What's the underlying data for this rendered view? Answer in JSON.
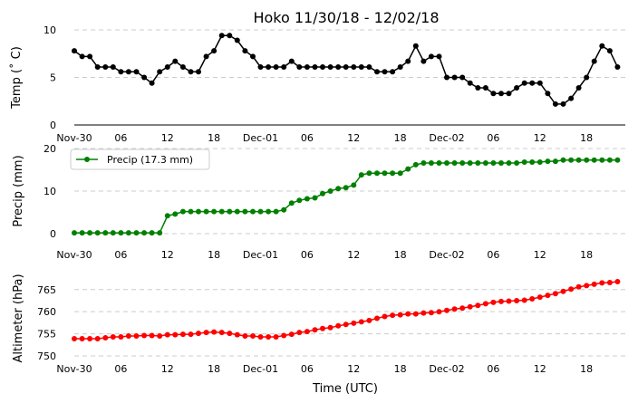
{
  "chart_data": [
    {
      "type": "line",
      "title": "Hoko 11/30/18 - 12/02/18",
      "ylabel": "Temp ($^\\circ$C)",
      "ylabel_display": "Temp (˚ C)",
      "xlabel": "",
      "x_unit": "hours since Nov-30 00:00",
      "x_ticks": [
        0,
        6,
        12,
        18,
        24,
        30,
        36,
        42,
        48,
        54,
        60,
        66
      ],
      "x_tick_labels": [
        "Nov-30",
        "06",
        "12",
        "18",
        "Dec-01",
        "06",
        "12",
        "18",
        "Dec-02",
        "06",
        "12",
        "18"
      ],
      "xlim": [
        0,
        71
      ],
      "ylim": [
        0,
        10
      ],
      "y_ticks": [
        0,
        5,
        10
      ],
      "grid": true,
      "legend": null,
      "color": "#000000",
      "series": [
        {
          "name": "Temp",
          "x": [
            0,
            1,
            2,
            3,
            4,
            5,
            6,
            7,
            8,
            9,
            10,
            11,
            12,
            13,
            14,
            15,
            16,
            17,
            18,
            19,
            20,
            21,
            22,
            23,
            24,
            25,
            26,
            27,
            28,
            29,
            30,
            31,
            32,
            33,
            34,
            35,
            36,
            37,
            38,
            39,
            40,
            41,
            42,
            43,
            44,
            45,
            46,
            47,
            48,
            49,
            50,
            51,
            52,
            53,
            54,
            55,
            56,
            57,
            58,
            59,
            60,
            61,
            62,
            63,
            64,
            65,
            66,
            67,
            68,
            69,
            70
          ],
          "values": [
            7.8,
            7.2,
            7.2,
            6.1,
            6.1,
            6.1,
            5.6,
            5.6,
            5.6,
            5.0,
            4.4,
            5.6,
            6.1,
            6.7,
            6.1,
            5.6,
            5.6,
            7.2,
            7.8,
            9.4,
            9.4,
            8.9,
            7.8,
            7.2,
            6.1,
            6.1,
            6.1,
            6.1,
            6.7,
            6.1,
            6.1,
            6.1,
            6.1,
            6.1,
            6.1,
            6.1,
            6.1,
            6.1,
            6.1,
            5.6,
            5.6,
            5.6,
            6.1,
            6.7,
            8.3,
            6.7,
            7.2,
            7.2,
            5.0,
            5.0,
            5.0,
            4.4,
            3.9,
            3.9,
            3.3,
            3.3,
            3.3,
            3.9,
            4.4,
            4.4,
            4.4,
            3.3,
            2.2,
            2.2,
            2.8,
            3.9,
            5.0,
            6.7,
            8.3,
            7.8,
            6.1
          ]
        }
      ]
    },
    {
      "type": "line",
      "title": "",
      "ylabel": "Precip (mm)",
      "xlabel": "",
      "x_tick_labels": [
        "Nov-30",
        "06",
        "12",
        "18",
        "Dec-01",
        "06",
        "12",
        "18",
        "Dec-02",
        "06",
        "12",
        "18"
      ],
      "xlim": [
        0,
        71
      ],
      "ylim": [
        0,
        20
      ],
      "y_ticks": [
        0,
        10,
        20
      ],
      "grid": true,
      "legend": "top-left",
      "color": "#008000",
      "series": [
        {
          "name": "Precip (17.3 mm)",
          "x": [
            0,
            1,
            2,
            3,
            4,
            5,
            6,
            7,
            8,
            9,
            10,
            11,
            12,
            13,
            14,
            15,
            16,
            17,
            18,
            19,
            20,
            21,
            22,
            23,
            24,
            25,
            26,
            27,
            28,
            29,
            30,
            31,
            32,
            33,
            34,
            35,
            36,
            37,
            38,
            39,
            40,
            41,
            42,
            43,
            44,
            45,
            46,
            47,
            48,
            49,
            50,
            51,
            52,
            53,
            54,
            55,
            56,
            57,
            58,
            59,
            60,
            61,
            62,
            63,
            64,
            65,
            66,
            67,
            68,
            69,
            70
          ],
          "values": [
            0.2,
            0.2,
            0.2,
            0.2,
            0.2,
            0.2,
            0.2,
            0.2,
            0.2,
            0.2,
            0.2,
            0.2,
            4.2,
            4.6,
            5.2,
            5.2,
            5.2,
            5.2,
            5.2,
            5.2,
            5.2,
            5.2,
            5.2,
            5.2,
            5.2,
            5.2,
            5.2,
            5.6,
            7.2,
            7.8,
            8.2,
            8.4,
            9.4,
            10.0,
            10.6,
            10.8,
            11.4,
            13.8,
            14.2,
            14.2,
            14.2,
            14.2,
            14.2,
            15.2,
            16.2,
            16.6,
            16.6,
            16.6,
            16.6,
            16.6,
            16.6,
            16.6,
            16.6,
            16.6,
            16.6,
            16.6,
            16.6,
            16.6,
            16.8,
            16.8,
            16.8,
            17.0,
            17.0,
            17.3,
            17.3,
            17.3,
            17.3,
            17.3,
            17.3,
            17.3,
            17.3
          ]
        }
      ]
    },
    {
      "type": "line",
      "title": "",
      "ylabel": "Altimeter (hPa)",
      "xlabel": "Time (UTC)",
      "x_tick_labels": [
        "Nov-30",
        "06",
        "12",
        "18",
        "Dec-01",
        "06",
        "12",
        "18",
        "Dec-02",
        "06",
        "12",
        "18"
      ],
      "xlim": [
        0,
        71
      ],
      "ylim": [
        750,
        767
      ],
      "y_ticks": [
        750,
        755,
        760,
        765
      ],
      "grid": true,
      "legend": null,
      "color": "#ff0000",
      "series": [
        {
          "name": "Altimeter",
          "x": [
            0,
            1,
            2,
            3,
            4,
            5,
            6,
            7,
            8,
            9,
            10,
            11,
            12,
            13,
            14,
            15,
            16,
            17,
            18,
            19,
            20,
            21,
            22,
            23,
            24,
            25,
            26,
            27,
            28,
            29,
            30,
            31,
            32,
            33,
            34,
            35,
            36,
            37,
            38,
            39,
            40,
            41,
            42,
            43,
            44,
            45,
            46,
            47,
            48,
            49,
            50,
            51,
            52,
            53,
            54,
            55,
            56,
            57,
            58,
            59,
            60,
            61,
            62,
            63,
            64,
            65,
            66,
            67,
            68,
            69,
            70
          ],
          "values": [
            753.9,
            753.9,
            753.9,
            753.9,
            754.1,
            754.3,
            754.3,
            754.5,
            754.5,
            754.6,
            754.6,
            754.5,
            754.8,
            754.8,
            754.9,
            754.9,
            755.1,
            755.3,
            755.4,
            755.3,
            755.1,
            754.8,
            754.5,
            754.5,
            754.3,
            754.3,
            754.3,
            754.6,
            754.9,
            755.3,
            755.5,
            755.9,
            756.2,
            756.4,
            756.8,
            757.1,
            757.4,
            757.7,
            758.0,
            758.5,
            758.9,
            759.2,
            759.3,
            759.5,
            759.5,
            759.7,
            759.8,
            760.0,
            760.3,
            760.6,
            760.8,
            761.1,
            761.4,
            761.8,
            762.1,
            762.3,
            762.4,
            762.5,
            762.6,
            762.9,
            763.3,
            763.7,
            764.1,
            764.6,
            765.1,
            765.6,
            765.9,
            766.2,
            766.5,
            766.6,
            766.8
          ]
        }
      ]
    }
  ]
}
